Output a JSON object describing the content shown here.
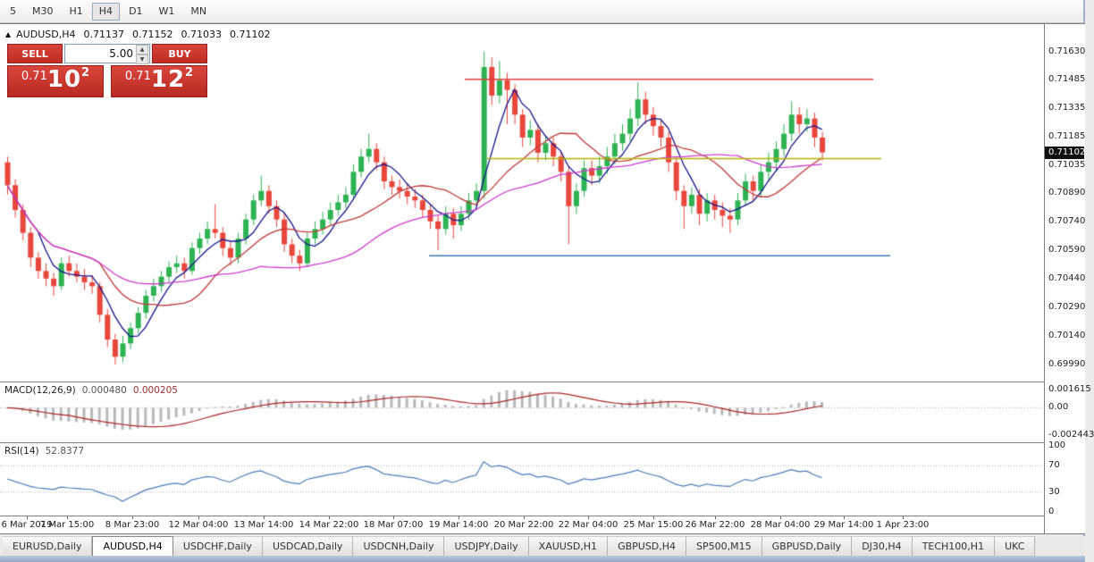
{
  "toolbar": {
    "timeframes": [
      "5",
      "M30",
      "H1",
      "H4",
      "D1",
      "W1",
      "MN"
    ],
    "active_timeframe": "H4"
  },
  "symbol_info": {
    "symbol": "AUDUSD,H4",
    "open": "0.71137",
    "high": "0.71152",
    "low": "0.71033",
    "close": "0.71102"
  },
  "one_click_trading": {
    "sell_label": "SELL",
    "buy_label": "BUY",
    "volume": "5.00",
    "sell_price": {
      "prefix": "0.71",
      "pips": "10",
      "point": "2"
    },
    "buy_price": {
      "prefix": "0.71",
      "pips": "12",
      "point": "2"
    },
    "button_color": "#c8332b"
  },
  "chart_data": {
    "type": "candlestick",
    "symbol": "AUDUSD",
    "timeframe": "H4",
    "y_range": [
      0.699,
      0.71775
    ],
    "y_axis_labels": [
      "0.71630",
      "0.71485",
      "0.71335",
      "0.71185",
      "0.71035",
      "0.70890",
      "0.70740",
      "0.70590",
      "0.70440",
      "0.70290",
      "0.70140",
      "0.69990"
    ],
    "current_price": "0.71102",
    "candle_up_color": "#2eb353",
    "candle_down_color": "#e8473c",
    "time_labels": [
      {
        "text": "6 Mar 2019",
        "x": 30
      },
      {
        "text": "7 Mar 15:00",
        "x": 75
      },
      {
        "text": "8 Mar 23:00",
        "x": 148
      },
      {
        "text": "12 Mar 04:00",
        "x": 222
      },
      {
        "text": "13 Mar 14:00",
        "x": 295
      },
      {
        "text": "14 Mar 22:00",
        "x": 368
      },
      {
        "text": "18 Mar 07:00",
        "x": 440
      },
      {
        "text": "19 Mar 14:00",
        "x": 513
      },
      {
        "text": "20 Mar 22:00",
        "x": 586
      },
      {
        "text": "22 Mar 04:00",
        "x": 658
      },
      {
        "text": "25 Mar 15:00",
        "x": 731
      },
      {
        "text": "26 Mar 22:00",
        "x": 800
      },
      {
        "text": "28 Mar 04:00",
        "x": 873
      },
      {
        "text": "29 Mar 14:00",
        "x": 944
      },
      {
        "text": "1 Apr 23:00",
        "x": 1010
      }
    ],
    "moving_averages": [
      {
        "period": 5,
        "color": "#16168c"
      },
      {
        "period": 13,
        "color": "#c03a3a"
      },
      {
        "period": 34,
        "color": "#d03bd0"
      }
    ],
    "horizontal_lines": [
      {
        "price": 0.71485,
        "color": "#e23b3b",
        "x1": 520,
        "x2": 977
      },
      {
        "price": 0.7107,
        "color": "#b5b500",
        "x1": 545,
        "x2": 986
      },
      {
        "price": 0.7056,
        "color": "#3d7ab8",
        "x1": 480,
        "x2": 996
      }
    ],
    "indicators": {
      "macd": {
        "label": "MACD(12,26,9)",
        "value_main": "0.000480",
        "value_signal": "0.000205",
        "axis_labels": [
          "0.001615",
          "0.00",
          "-0.002443"
        ],
        "range": [
          -0.002443,
          0.001615
        ],
        "fast": 12,
        "slow": 26,
        "signal": 9,
        "histogram_color": "#b9b9b9",
        "signal_color": "#a92626"
      },
      "rsi": {
        "label": "RSI(14)",
        "value": "52.8377",
        "axis_labels": [
          "100",
          "70",
          "30",
          "0"
        ],
        "levels": [
          70,
          30
        ],
        "range": [
          0,
          100
        ],
        "period": 14,
        "line_color": "#4a7ebb"
      }
    },
    "candles": [
      [
        0.7105,
        0.7108,
        0.7088,
        0.7093
      ],
      [
        0.7093,
        0.7096,
        0.7076,
        0.708
      ],
      [
        0.708,
        0.7083,
        0.7064,
        0.7068
      ],
      [
        0.7068,
        0.7071,
        0.705,
        0.7055
      ],
      [
        0.7055,
        0.7058,
        0.7044,
        0.7048
      ],
      [
        0.7048,
        0.7052,
        0.704,
        0.7044
      ],
      [
        0.7044,
        0.7047,
        0.7035,
        0.704
      ],
      [
        0.704,
        0.7055,
        0.7038,
        0.7052
      ],
      [
        0.7052,
        0.7056,
        0.7045,
        0.7048
      ],
      [
        0.7048,
        0.7052,
        0.7042,
        0.7045
      ],
      [
        0.7045,
        0.7049,
        0.7038,
        0.7042
      ],
      [
        0.7042,
        0.7046,
        0.7036,
        0.704
      ],
      [
        0.704,
        0.7042,
        0.7021,
        0.7025
      ],
      [
        0.7025,
        0.7028,
        0.7008,
        0.7012
      ],
      [
        0.7012,
        0.7015,
        0.6999,
        0.7003
      ],
      [
        0.7003,
        0.7014,
        0.7,
        0.701
      ],
      [
        0.701,
        0.7021,
        0.7007,
        0.7018
      ],
      [
        0.7018,
        0.7029,
        0.7015,
        0.7026
      ],
      [
        0.7026,
        0.7038,
        0.7023,
        0.7035
      ],
      [
        0.7035,
        0.7044,
        0.7032,
        0.704
      ],
      [
        0.704,
        0.7048,
        0.7037,
        0.7045
      ],
      [
        0.7045,
        0.7053,
        0.7042,
        0.705
      ],
      [
        0.705,
        0.7056,
        0.7047,
        0.7052
      ],
      [
        0.7052,
        0.7055,
        0.7044,
        0.7048
      ],
      [
        0.7048,
        0.7063,
        0.7046,
        0.706
      ],
      [
        0.706,
        0.7068,
        0.7057,
        0.7065
      ],
      [
        0.7065,
        0.7074,
        0.7062,
        0.707
      ],
      [
        0.707,
        0.7083,
        0.7065,
        0.7068
      ],
      [
        0.7068,
        0.7071,
        0.7056,
        0.706
      ],
      [
        0.706,
        0.7063,
        0.7051,
        0.7055
      ],
      [
        0.7055,
        0.7068,
        0.7052,
        0.7065
      ],
      [
        0.7065,
        0.7078,
        0.7062,
        0.7075
      ],
      [
        0.7075,
        0.7088,
        0.7072,
        0.7085
      ],
      [
        0.7085,
        0.7098,
        0.7082,
        0.709
      ],
      [
        0.709,
        0.7093,
        0.7078,
        0.7082
      ],
      [
        0.7082,
        0.7085,
        0.7071,
        0.7075
      ],
      [
        0.7075,
        0.7078,
        0.7058,
        0.7062
      ],
      [
        0.7062,
        0.7065,
        0.7052,
        0.7056
      ],
      [
        0.7056,
        0.7059,
        0.7048,
        0.7052
      ],
      [
        0.7052,
        0.7068,
        0.705,
        0.7065
      ],
      [
        0.7065,
        0.7074,
        0.7062,
        0.707
      ],
      [
        0.707,
        0.7079,
        0.7067,
        0.7075
      ],
      [
        0.7075,
        0.7084,
        0.7072,
        0.708
      ],
      [
        0.708,
        0.7088,
        0.7077,
        0.7084
      ],
      [
        0.7084,
        0.7092,
        0.7081,
        0.7088
      ],
      [
        0.7088,
        0.7104,
        0.7085,
        0.71
      ],
      [
        0.71,
        0.7112,
        0.7097,
        0.7108
      ],
      [
        0.7108,
        0.712,
        0.7105,
        0.7112
      ],
      [
        0.7112,
        0.7115,
        0.7101,
        0.7105
      ],
      [
        0.7105,
        0.7108,
        0.7091,
        0.7095
      ],
      [
        0.7095,
        0.7098,
        0.7088,
        0.7092
      ],
      [
        0.7092,
        0.7096,
        0.7086,
        0.709
      ],
      [
        0.709,
        0.7094,
        0.7083,
        0.7087
      ],
      [
        0.7087,
        0.7091,
        0.7081,
        0.7085
      ],
      [
        0.7085,
        0.7088,
        0.7076,
        0.708
      ],
      [
        0.708,
        0.7083,
        0.707,
        0.7074
      ],
      [
        0.7074,
        0.7077,
        0.7059,
        0.707
      ],
      [
        0.707,
        0.7082,
        0.7067,
        0.7078
      ],
      [
        0.7078,
        0.7081,
        0.7065,
        0.7072
      ],
      [
        0.7072,
        0.7082,
        0.7069,
        0.7078
      ],
      [
        0.7078,
        0.7089,
        0.7075,
        0.7085
      ],
      [
        0.7085,
        0.7094,
        0.7082,
        0.709
      ],
      [
        0.709,
        0.7163,
        0.7086,
        0.7155
      ],
      [
        0.7155,
        0.716,
        0.7135,
        0.714
      ],
      [
        0.714,
        0.7158,
        0.7136,
        0.7148
      ],
      [
        0.7148,
        0.7152,
        0.7125,
        0.7143
      ],
      [
        0.7143,
        0.7146,
        0.7125,
        0.713
      ],
      [
        0.713,
        0.7133,
        0.7113,
        0.7118
      ],
      [
        0.7118,
        0.7127,
        0.7114,
        0.7122
      ],
      [
        0.7122,
        0.7125,
        0.7105,
        0.711
      ],
      [
        0.711,
        0.7119,
        0.7106,
        0.7115
      ],
      [
        0.7115,
        0.7118,
        0.7103,
        0.7108
      ],
      [
        0.7108,
        0.7111,
        0.7095,
        0.71
      ],
      [
        0.71,
        0.7103,
        0.7062,
        0.7082
      ],
      [
        0.7082,
        0.7094,
        0.7078,
        0.709
      ],
      [
        0.709,
        0.7106,
        0.7087,
        0.7102
      ],
      [
        0.7102,
        0.7106,
        0.7093,
        0.7098
      ],
      [
        0.7098,
        0.7108,
        0.7094,
        0.7103
      ],
      [
        0.7103,
        0.7113,
        0.7099,
        0.7108
      ],
      [
        0.7108,
        0.712,
        0.7104,
        0.7115
      ],
      [
        0.7115,
        0.7125,
        0.7111,
        0.712
      ],
      [
        0.712,
        0.7133,
        0.7116,
        0.7128
      ],
      [
        0.7128,
        0.7147,
        0.7124,
        0.7138
      ],
      [
        0.7138,
        0.7142,
        0.7125,
        0.713
      ],
      [
        0.713,
        0.7134,
        0.7119,
        0.7124
      ],
      [
        0.7124,
        0.7127,
        0.7113,
        0.7118
      ],
      [
        0.7118,
        0.7121,
        0.71,
        0.7105
      ],
      [
        0.7105,
        0.7108,
        0.7085,
        0.709
      ],
      [
        0.709,
        0.7093,
        0.707,
        0.7082
      ],
      [
        0.7082,
        0.7092,
        0.7078,
        0.7088
      ],
      [
        0.7088,
        0.7091,
        0.7072,
        0.7078
      ],
      [
        0.7078,
        0.7089,
        0.7074,
        0.7085
      ],
      [
        0.7085,
        0.7088,
        0.7075,
        0.708
      ],
      [
        0.708,
        0.7084,
        0.7071,
        0.7077
      ],
      [
        0.7077,
        0.7081,
        0.7068,
        0.7075
      ],
      [
        0.7075,
        0.7089,
        0.7072,
        0.7085
      ],
      [
        0.7085,
        0.7099,
        0.7082,
        0.7095
      ],
      [
        0.7095,
        0.7098,
        0.7085,
        0.709
      ],
      [
        0.709,
        0.7104,
        0.7087,
        0.71
      ],
      [
        0.71,
        0.711,
        0.7096,
        0.7105
      ],
      [
        0.7105,
        0.7116,
        0.7101,
        0.7112
      ],
      [
        0.7112,
        0.7125,
        0.7108,
        0.712
      ],
      [
        0.712,
        0.7137,
        0.7116,
        0.713
      ],
      [
        0.713,
        0.7134,
        0.712,
        0.7125
      ],
      [
        0.7125,
        0.7133,
        0.7121,
        0.7128
      ],
      [
        0.7128,
        0.7131,
        0.7113,
        0.7118
      ],
      [
        0.7118,
        0.7121,
        0.7106,
        0.71102
      ]
    ]
  },
  "tabs": {
    "items": [
      "EURUSD,Daily",
      "AUDUSD,H4",
      "USDCHF,Daily",
      "USDCAD,Daily",
      "USDCNH,Daily",
      "USDJPY,Daily",
      "XAUUSD,H1",
      "GBPUSD,H4",
      "SP500,M15",
      "GBPUSD,Daily",
      "DJ30,H4",
      "TECH100,H1",
      "UKC"
    ],
    "active_index": 1
  }
}
